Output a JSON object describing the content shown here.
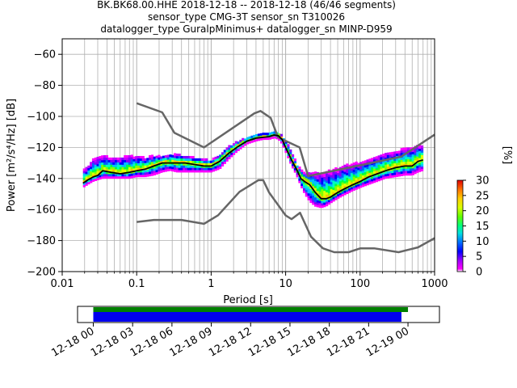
{
  "title": {
    "line1": "BK.BK68.00.HHE   2018-12-18 -- 2018-12-18  (46/46 segments)",
    "line2": "sensor_type CMG-3T sensor_sn T310026",
    "line3": "datalogger_type GuralpMinimus+ datalogger_sn MINP-D959"
  },
  "chart_data": {
    "type": "heatmap",
    "xlabel": "Period [s]",
    "ylabel": "Power [m²/s⁴/Hz] [dB]",
    "x_scale": "log",
    "xlim": [
      0.01,
      1000
    ],
    "ylim": [
      -200,
      -50
    ],
    "x_ticks": [
      "0.01",
      "0.1",
      "1",
      "10",
      "100",
      "1000"
    ],
    "y_ticks": [
      "−60",
      "−80",
      "−100",
      "−120",
      "−140",
      "−160",
      "−180",
      "−200"
    ],
    "grid": true,
    "colorbar": {
      "label": "[%]",
      "ticks": [
        "0",
        "5",
        "10",
        "15",
        "20",
        "25",
        "30"
      ],
      "range": [
        0,
        30
      ]
    },
    "new_high_noise_model": {
      "color": "#666666",
      "periods": [
        0.1,
        0.22,
        0.32,
        0.8,
        3.8,
        4.6,
        6.3,
        7.9,
        15.4,
        20,
        354.8,
        10000
      ],
      "values": [
        -91.5,
        -97.4,
        -110.5,
        -120,
        -98,
        -96.5,
        -101,
        -113.5,
        -120,
        -138.5,
        -126,
        -80.1
      ]
    },
    "new_low_noise_model": {
      "color": "#666666",
      "periods": [
        0.1,
        0.17,
        0.4,
        0.8,
        1.24,
        2.4,
        4.3,
        5,
        6,
        10,
        12,
        15.6,
        21.9,
        31.6,
        45,
        70,
        101,
        154,
        328,
        600,
        10000
      ],
      "values": [
        -168,
        -166.7,
        -166.7,
        -169.2,
        -163.7,
        -148.6,
        -141.1,
        -141.1,
        -149,
        -163.8,
        -166.2,
        -162.1,
        -177.5,
        -185,
        -187.5,
        -187.5,
        -185,
        -185,
        -187.5,
        -184.4,
        -151.5
      ]
    },
    "mode_curve": {
      "color": "#000000",
      "periods": [
        0.019,
        0.022,
        0.026,
        0.03,
        0.035,
        0.045,
        0.06,
        0.08,
        0.1,
        0.13,
        0.17,
        0.22,
        0.28,
        0.35,
        0.45,
        0.6,
        0.8,
        1.0,
        1.3,
        1.7,
        2.2,
        3.0,
        4.0,
        5.0,
        6.0,
        7.0,
        8.0,
        9.0,
        10.0,
        12.0,
        14.0,
        16.0,
        18.0,
        21.0,
        25.0,
        30.0,
        35.0,
        40.0,
        50.0,
        60.0,
        80.0,
        100.0,
        130.0,
        170.0,
        220.0,
        300.0,
        400.0,
        500.0,
        600.0,
        700.0
      ],
      "values": [
        -143,
        -141,
        -139,
        -138,
        -135,
        -136,
        -137,
        -136,
        -135,
        -134,
        -132,
        -130,
        -130,
        -130,
        -130,
        -131,
        -132,
        -132,
        -129,
        -124,
        -120,
        -116,
        -114,
        -113.5,
        -113,
        -112,
        -112.5,
        -115,
        -120,
        -128,
        -134,
        -140,
        -142,
        -144,
        -149,
        -153,
        -153,
        -152,
        -149,
        -147,
        -144,
        -142,
        -139,
        -137,
        -135,
        -133,
        -132,
        -132,
        -129,
        -128
      ]
    },
    "spread_upper": [
      -135,
      -133,
      -128,
      -127,
      -126,
      -127,
      -127,
      -126,
      -126,
      -127,
      -126,
      -126,
      -125,
      -125,
      -126,
      -127,
      -128,
      -129,
      -125,
      -120,
      -117,
      -114,
      -112,
      -111.5,
      -111,
      -110,
      -111,
      -113,
      -116,
      -123,
      -131,
      -135,
      -137,
      -137,
      -137,
      -137,
      -136,
      -135,
      -134,
      -132,
      -131,
      -130,
      -128,
      -126,
      -124,
      -123,
      -121,
      -121,
      -119,
      -119
    ],
    "spread_lower": [
      -146,
      -144,
      -142,
      -141,
      -140,
      -140,
      -140,
      -140,
      -139,
      -139,
      -138,
      -136,
      -135,
      -136,
      -136,
      -136,
      -136,
      -136,
      -134,
      -128,
      -123,
      -118,
      -116,
      -115,
      -115,
      -114,
      -115,
      -118,
      -123,
      -132,
      -138,
      -145,
      -150,
      -155,
      -158,
      -159,
      -158,
      -156,
      -153,
      -151,
      -148,
      -146,
      -144,
      -142,
      -140,
      -139,
      -138,
      -138,
      -136,
      -135
    ]
  },
  "timeline": {
    "tick_labels": [
      "12-18 00",
      "12-18 03",
      "12-18 06",
      "12-18 09",
      "12-18 12",
      "12-18 15",
      "12-18 18",
      "12-18 21",
      "12-19 00"
    ],
    "hours_span": 27.6,
    "hours_start_offset": -1.2,
    "green_bar": {
      "start_hour": 0.0,
      "end_hour": 24.0,
      "color": "#008000"
    },
    "blue_bar": {
      "start_hour": 0.0,
      "end_hour": 23.5,
      "color": "#0000ee"
    }
  }
}
